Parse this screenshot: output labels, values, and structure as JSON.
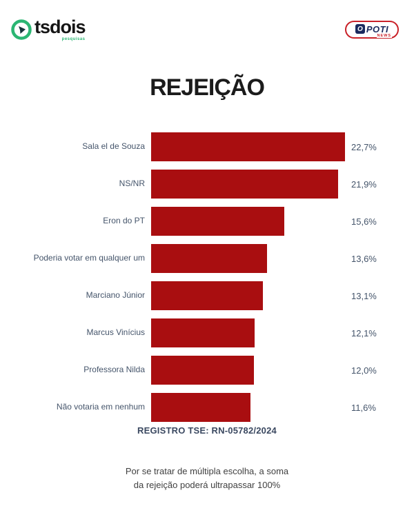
{
  "header": {
    "tsdois_logo": {
      "name": "tsdois",
      "tagline": "pesquisas",
      "green": "#2bb673",
      "dark": "#151515"
    },
    "opoti_logo": {
      "o_letter": "O",
      "name": "POTI",
      "news": "NEWS",
      "red": "#c92128",
      "navy": "#1b2a5e"
    }
  },
  "chart_data": {
    "type": "bar",
    "orientation": "horizontal",
    "title": "REJEIÇÃO",
    "bar_color": "#a90e10",
    "label_color": "#44546a",
    "max_value": 22.7,
    "categories": [
      "Sala el de Souza",
      "NS/NR",
      "Eron do PT",
      "Poderia votar em qualquer um",
      "Marciano Júnior",
      "Marcus Vinícius",
      "Professora Nilda",
      "Não votaria em nenhum"
    ],
    "values": [
      22.7,
      21.9,
      15.6,
      13.6,
      13.1,
      12.1,
      12.0,
      11.6
    ],
    "value_labels": [
      "22,7%",
      "21,9%",
      "15,6%",
      "13,6%",
      "13,1%",
      "12,1%",
      "12,0%",
      "11,6%"
    ],
    "legend": null,
    "grid": false
  },
  "registro": {
    "text": "REGISTRO TSE: RN-05782/2024",
    "color": "#3a4860"
  },
  "footnote": {
    "line1": "Por se tratar de múltipla escolha, a soma",
    "line2": "da rejeição poderá ultrapassar 100%"
  }
}
